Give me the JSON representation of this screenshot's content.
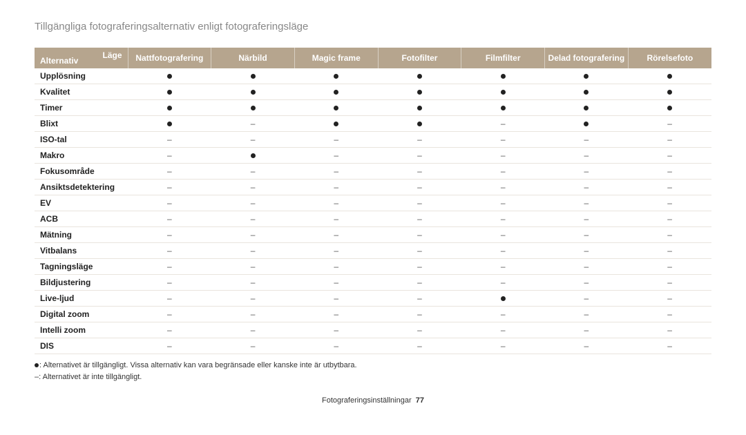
{
  "title": "Tillgängliga fotograferingsalternativ enligt fotograferingsläge",
  "header": {
    "mode_label": "Läge",
    "alt_label": "Alternativ",
    "columns": [
      "Nattfotografering",
      "Närbild",
      "Magic frame",
      "Fotofilter",
      "Filmfilter",
      "Delad fotografering",
      "Rörelsefoto"
    ]
  },
  "rows": [
    {
      "label": "Upplösning",
      "cells": [
        "●",
        "●",
        "●",
        "●",
        "●",
        "●",
        "●"
      ]
    },
    {
      "label": "Kvalitet",
      "cells": [
        "●",
        "●",
        "●",
        "●",
        "●",
        "●",
        "●"
      ]
    },
    {
      "label": "Timer",
      "cells": [
        "●",
        "●",
        "●",
        "●",
        "●",
        "●",
        "●"
      ]
    },
    {
      "label": "Blixt",
      "cells": [
        "●",
        "–",
        "●",
        "●",
        "–",
        "●",
        "–"
      ]
    },
    {
      "label": "ISO-tal",
      "cells": [
        "–",
        "–",
        "–",
        "–",
        "–",
        "–",
        "–"
      ]
    },
    {
      "label": "Makro",
      "cells": [
        "–",
        "●",
        "–",
        "–",
        "–",
        "–",
        "–"
      ]
    },
    {
      "label": "Fokusområde",
      "cells": [
        "–",
        "–",
        "–",
        "–",
        "–",
        "–",
        "–"
      ]
    },
    {
      "label": "Ansiktsdetektering",
      "cells": [
        "–",
        "–",
        "–",
        "–",
        "–",
        "–",
        "–"
      ]
    },
    {
      "label": "EV",
      "cells": [
        "–",
        "–",
        "–",
        "–",
        "–",
        "–",
        "–"
      ]
    },
    {
      "label": "ACB",
      "cells": [
        "–",
        "–",
        "–",
        "–",
        "–",
        "–",
        "–"
      ]
    },
    {
      "label": "Mätning",
      "cells": [
        "–",
        "–",
        "–",
        "–",
        "–",
        "–",
        "–"
      ]
    },
    {
      "label": "Vitbalans",
      "cells": [
        "–",
        "–",
        "–",
        "–",
        "–",
        "–",
        "–"
      ]
    },
    {
      "label": "Tagningsläge",
      "cells": [
        "–",
        "–",
        "–",
        "–",
        "–",
        "–",
        "–"
      ]
    },
    {
      "label": "Bildjustering",
      "cells": [
        "–",
        "–",
        "–",
        "–",
        "–",
        "–",
        "–"
      ]
    },
    {
      "label": "Live-ljud",
      "cells": [
        "–",
        "–",
        "–",
        "–",
        "●",
        "–",
        "–"
      ]
    },
    {
      "label": "Digital zoom",
      "cells": [
        "–",
        "–",
        "–",
        "–",
        "–",
        "–",
        "–"
      ]
    },
    {
      "label": "Intelli zoom",
      "cells": [
        "–",
        "–",
        "–",
        "–",
        "–",
        "–",
        "–"
      ]
    },
    {
      "label": "DIS",
      "cells": [
        "–",
        "–",
        "–",
        "–",
        "–",
        "–",
        "–"
      ]
    }
  ],
  "legend": {
    "line1": ": Alternativet är tillgängligt. Vissa alternativ kan vara begränsade eller kanske inte är utbytbara.",
    "line2": "–: Alternativet är inte tillgängligt."
  },
  "footer": {
    "section": "Fotograferingsinställningar",
    "page": "77"
  },
  "style": {
    "header_bg": "#b6a58e",
    "header_text": "#ffffff",
    "row_border": "#e9e4dd",
    "dot_color": "#222222",
    "title_color": "#888888",
    "font_family": "Myriad Pro, Segoe UI, Arial, sans-serif"
  }
}
